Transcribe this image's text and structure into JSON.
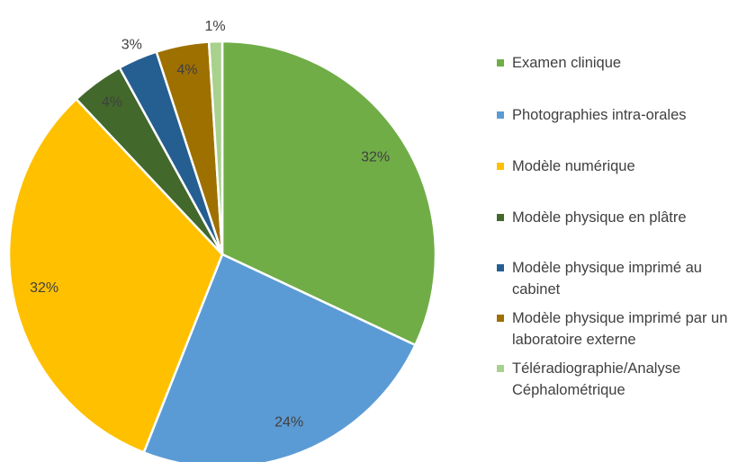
{
  "chart_data": {
    "type": "pie",
    "categories": [
      "Examen clinique",
      "Photographies intra-orales",
      "Modèle numérique",
      "Modèle physique en plâtre",
      "Modèle physique imprimé au cabinet",
      "Modèle physique imprimé par un laboratoire externe",
      "Téléradiographie/Analyse Céphalométrique"
    ],
    "values": [
      32,
      24,
      32,
      4,
      3,
      4,
      1
    ],
    "value_labels": [
      "32%",
      "24%",
      "32%",
      "4%",
      "3%",
      "4%",
      "1%"
    ],
    "colors": [
      "#70ad47",
      "#5b9bd5",
      "#ffc000",
      "#43682b",
      "#255e91",
      "#9e7000",
      "#a9d18e"
    ],
    "legend": "right"
  }
}
